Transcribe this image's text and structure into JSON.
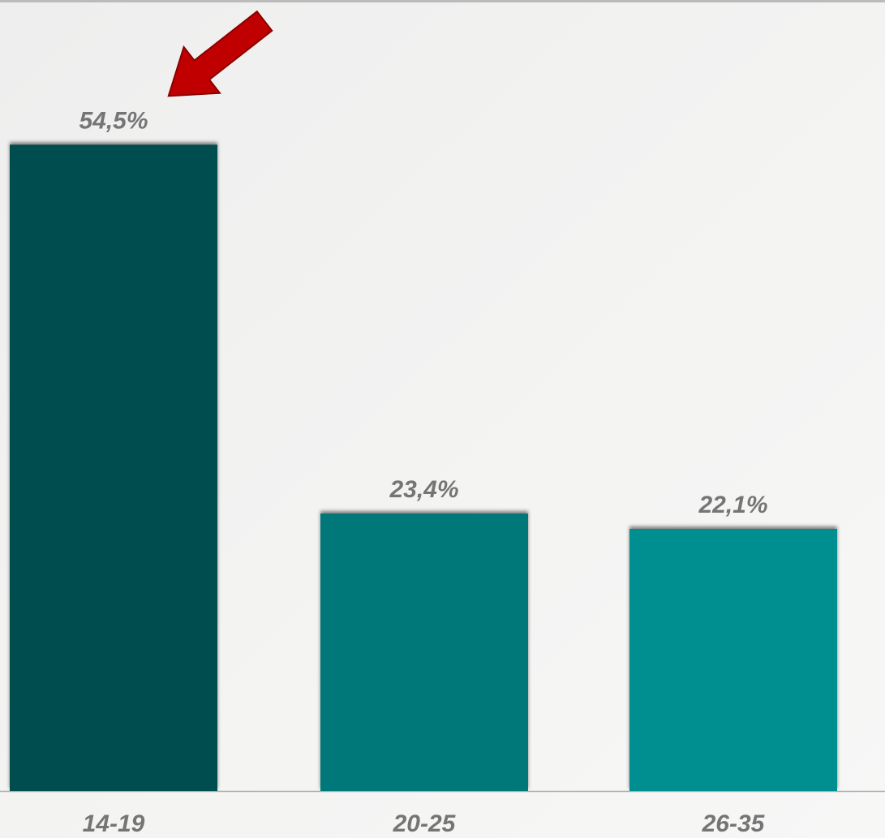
{
  "chart_data": {
    "type": "bar",
    "categories": [
      "14-19",
      "20-25",
      "26-35"
    ],
    "values": [
      54.5,
      23.4,
      22.1
    ],
    "value_labels": [
      "54,5%",
      "23,4%",
      "22,1%"
    ],
    "colors": [
      "#004d50",
      "#00787a",
      "#008f91"
    ],
    "ylim": [
      0,
      60
    ]
  }
}
